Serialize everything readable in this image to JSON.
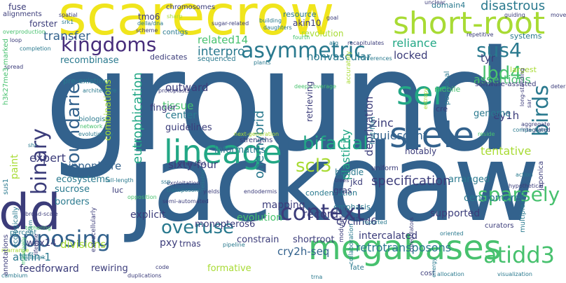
{
  "wordcloud": {
    "palette": {
      "navy": "#3b3c7a",
      "blue": "#33628d",
      "teal": "#29798e",
      "green": "#22a785",
      "lime": "#47c16e",
      "yellow": "#f0e51c",
      "purple": "#472d7b",
      "light": "#a8db34"
    },
    "words": [
      "ground",
      "jackdaw",
      "scarecrow",
      "short-root",
      "lineage",
      "megabases",
      "stele",
      "ser",
      "kingdoms",
      "asymmetric",
      "binary",
      "boundaries",
      "birds",
      "context",
      "sus4",
      "opposing",
      "overuse",
      "scl3",
      "bifacial",
      "atidd3",
      "sparsely",
      "lbd4",
      "tissue",
      "center",
      "quiescent",
      "specification",
      "disastrous",
      "domain4",
      "transfer",
      "related14",
      "interpro",
      "reliance",
      "assertions",
      "tyr",
      "locked",
      "nonvascular",
      "recombinase",
      "eutrophication",
      "one-hybrid",
      "deprivation",
      "plasticity",
      "zinc",
      "ey1h",
      "genome",
      "tentative",
      "expert",
      "sixty-four",
      "nipponbare",
      "ecosystems",
      "paint",
      "dd",
      "mapping",
      "evolution",
      "divisions",
      "wox14",
      "pxy",
      "trnas",
      "explicit",
      "monopteros6",
      "record",
      "cyclind6",
      "retrotransposons",
      "cry2h-seq",
      "attfin-1",
      "feedforward",
      "rewiring",
      "formative",
      "shortroot",
      "constrain",
      "intercalated",
      "supported",
      "centromere",
      "arranged",
      "jkd",
      "condensation",
      "informatics",
      "guidelines",
      "finger",
      "outward",
      "combinations",
      "pre-existing",
      "chromosomes",
      "tmo6",
      "forster",
      "fuse",
      "alignments",
      "revolution",
      "akin10",
      "resource",
      "systems",
      "largest",
      "software-assisted",
      "mobile",
      "cre",
      "retrieving",
      "sequenced",
      "dedicates",
      "luc",
      "borders",
      "sucrose",
      "sus1",
      "gras",
      "emphasis",
      "multiplexed",
      "modules",
      "collaboration",
      "cost",
      "allocation",
      "visualization",
      "cambium",
      "h3k27me3-marked",
      "percent",
      "annotations",
      "ecologically",
      "biologist",
      "network",
      "bundle",
      "trees",
      "uniform",
      "notably",
      "curators",
      "fret-flim",
      "accurately",
      "positional",
      "entropy",
      "japonica",
      "aggregate",
      "oriented",
      "coregulators",
      "code",
      "pipeline",
      "fate",
      "trna",
      "yields",
      "endodermis",
      "exploitation",
      "full-length",
      "transposons",
      "opposition",
      "three-fold",
      "next-generation",
      "strengths",
      "contigs",
      "scheme",
      "sugar-related",
      "della/dna",
      "sharp",
      "building",
      "goal",
      "daughters",
      "unclear",
      "guiding",
      "moves",
      "repetitive",
      "spatial",
      "srk1",
      "overproduction",
      "loop",
      "completion",
      "spread",
      "fourth",
      "architecture",
      "protoplasts",
      "reliable",
      "action",
      "integrated",
      "long-standing",
      "sar",
      "reside",
      "plants",
      "inferences",
      "compaction",
      "evolutionary",
      "rearrange",
      "hallmark",
      "tethering",
      "massively",
      "lifetime",
      "shr",
      "duplications",
      "determinants",
      "extracellularly",
      "stem",
      "broad-scale",
      "ssp",
      "semi-automated",
      "hypothetical",
      "reported",
      "deep-coverage",
      "atg",
      "recapitulates",
      "energy",
      "organization",
      "auxin",
      "hormone"
    ]
  }
}
